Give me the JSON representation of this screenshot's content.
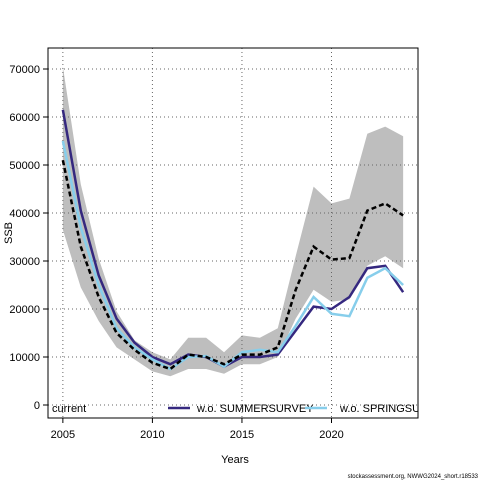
{
  "chart_data": {
    "type": "line",
    "x_label": "Years",
    "y_label": "SSB",
    "footer": "stockassessment.org, NWWG2024_short.r18533",
    "x": [
      2005,
      2006,
      2007,
      2008,
      2009,
      2010,
      2011,
      2012,
      2013,
      2014,
      2015,
      2016,
      2017,
      2018,
      2019,
      2020,
      2021,
      2022,
      2023,
      2024
    ],
    "series": [
      {
        "name": "current",
        "color": "#000000",
        "dashed": true,
        "band_color": "#bebebe",
        "values": [
          51000,
          33000,
          22500,
          15000,
          11500,
          8800,
          7500,
          10500,
          10000,
          8500,
          10500,
          10500,
          12000,
          24000,
          33000,
          30300,
          30600,
          40500,
          42000,
          39500
        ],
        "upper": [
          70500,
          46000,
          30500,
          19500,
          13500,
          11000,
          9500,
          14000,
          14000,
          11000,
          14500,
          14000,
          16000,
          31000,
          45500,
          42000,
          43000,
          56500,
          58000,
          56000
        ],
        "lower": [
          36500,
          24500,
          17500,
          12000,
          9500,
          7000,
          6000,
          7500,
          7500,
          6500,
          8500,
          8500,
          10000,
          18000,
          24000,
          21500,
          22000,
          29000,
          31000,
          28500
        ]
      },
      {
        "name": "w.o. SUMMERSURVEY",
        "color": "#35287f",
        "values": [
          61500,
          40500,
          27000,
          18000,
          13000,
          10000,
          8500,
          10500,
          10000,
          8000,
          10000,
          10000,
          10500,
          15500,
          20500,
          20000,
          22500,
          28500,
          29000,
          23500
        ]
      },
      {
        "name": "w.o. SPRINGSURVEY",
        "color": "#87ceeb",
        "values": [
          55000,
          37000,
          25000,
          16000,
          12000,
          9500,
          7500,
          10000,
          10200,
          8000,
          11000,
          11500,
          11000,
          16500,
          22500,
          19000,
          18500,
          26500,
          28500,
          25000
        ]
      }
    ],
    "xlim": [
      2004.17,
      2024.83
    ],
    "xticks": [
      2005,
      2010,
      2015,
      2020
    ],
    "ylim": [
      -2708,
      74375
    ],
    "yticks": [
      0,
      10000,
      20000,
      30000,
      40000,
      50000,
      60000,
      70000
    ],
    "grid": true,
    "legend": "bottom"
  }
}
